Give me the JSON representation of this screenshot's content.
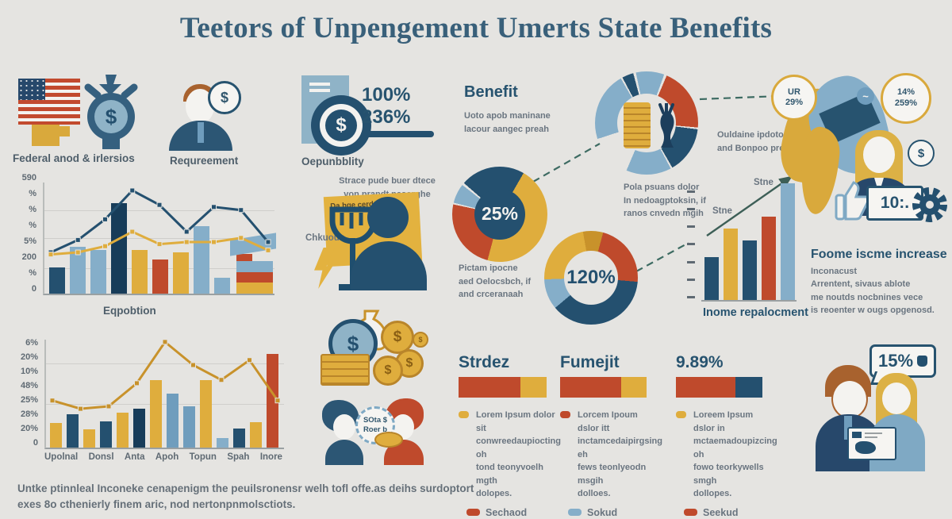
{
  "title": "Teetors of Unpengement Umerts State Benefits",
  "palette": {
    "navy": "#24506f",
    "dnavy": "#173c59",
    "lblue": "#85aec9",
    "mblue": "#6f9dbd",
    "red": "#bf4a2c",
    "gold": "#dfad3d",
    "dgold": "#c8922b",
    "bg": "#e5e4e1",
    "white": "#f6f5f2"
  },
  "top": {
    "federal_label": "Federal anod & irlersios",
    "requirement_label": "Requreement",
    "dependability_label": "Oepunbblity",
    "dependability_value1": "100%",
    "dependability_value2": "236%",
    "benefit_title": "Benefit",
    "benefit_subtitle": "Uoto apob maninane\nlacour aangec preah",
    "donut_note": "Ouldaine ipdotose\nand Bonpoo preah",
    "bubble_ur": "UR\n29%",
    "bubble_pct": "14%\n259%",
    "dollar_sign": "$",
    "calculator_display": "10:."
  },
  "middle": {
    "sticky_text": "Strace pude buer dtece\nvon prandt nasorghe",
    "sticky_note": "Da hge cerdones",
    "chkuoun_label": "Chkuoun",
    "pie_caption": "Pictam ipocne\naed Oelocsbch, if\nand crceranaah",
    "donut_caption": "Pola psuans dolor\nIn nedoagptoksin, if\nranos cnvedn mgih",
    "stne_label_1": "Stne",
    "stne_label_2": "Stne",
    "income_chart_label": "Inome repalocment",
    "income_title": "Foome iscme increase",
    "income_sub": "Inconacust",
    "income_body": "Arrentent, sivaus ablote\nme noutds nocbnines vece\nis reoenter w ougs opgenosd."
  },
  "bottom": {
    "talk_bubble": "SOta $\nRoer b",
    "family_bubble": "15%",
    "columns": [
      {
        "title": "Strdez",
        "bullet": "gold",
        "text": "Lorem Ipsum dolor sit\nconwreedaupiocting oh\ntond teonyvoelh mgth\ndolopes.",
        "pill": "red",
        "pill_label": "Sechaod",
        "bar": [
          [
            "red",
            78
          ],
          [
            "gold",
            33
          ]
        ]
      },
      {
        "title": "Fumejit",
        "bullet": "red",
        "text": "Lorcem Ipoum dslor itt\ninctamcedaipirgsing eh\nfews teonlyeodn msgih\ndolloes.",
        "pill": "lblue",
        "pill_label": "Sokud",
        "bar": [
          [
            "red",
            77
          ],
          [
            "gold",
            32
          ]
        ]
      },
      {
        "title": "9.89%",
        "bullet": "gold",
        "text": "Loreem Ipsum dslor in\nmctaemadoupizcing oh\nfowo teorkywells smgh\ndollopes.",
        "pill": "red",
        "pill_label": "Seekud",
        "bar": [
          [
            "red",
            75
          ],
          [
            "navy",
            34
          ]
        ]
      }
    ],
    "footer": "Untke ptinnleal Inconeke cenapenigm the peuilsronensr welh tofl offe.as deihs surdoptort\nexes 8o cthenierly finem aric, nod nertonpnmolsctiots."
  },
  "chart_data": [
    {
      "id": "chart1",
      "type": "bar+line",
      "title": "Eqpobtion",
      "y_ticks": [
        "590",
        "%",
        "%",
        "%",
        "5%",
        "200",
        "%",
        "0"
      ],
      "bars": {
        "values": [
          25,
          45,
          42,
          88,
          42,
          33,
          40,
          65,
          15
        ],
        "colors": [
          "navy",
          "lblue",
          "lblue",
          "dnavy",
          "gold",
          "red",
          "gold",
          "lblue",
          "lblue"
        ]
      },
      "stack": {
        "layers": [
          [
            "gold",
            14
          ],
          [
            "red",
            13
          ],
          [
            "lblue",
            14
          ]
        ],
        "cap": [
          "red",
          20,
          9
        ]
      },
      "series": [
        {
          "name": "blue-line",
          "color": "navy",
          "values": [
            40,
            52,
            72,
            100,
            86,
            60,
            84,
            81,
            50
          ]
        },
        {
          "name": "gold-line",
          "color": "gold",
          "values": [
            38,
            40,
            46,
            60,
            48,
            50,
            50,
            54,
            42
          ]
        }
      ],
      "ylim": [
        0,
        100
      ],
      "grid": true,
      "legend": "none"
    },
    {
      "id": "chart2",
      "type": "bar+line",
      "y_ticks": [
        "6%",
        "20%",
        "10%",
        "48%",
        "25%",
        "28%",
        "20%",
        "0"
      ],
      "x_labels": [
        "Upolnal",
        "Donsl",
        "Anta",
        "Apoh",
        "Topun",
        "Spah",
        "Inore"
      ],
      "bars": {
        "values": [
          30,
          40,
          22,
          32,
          42,
          47,
          82,
          65,
          50,
          82,
          12,
          23,
          31,
          113
        ],
        "colors": [
          "gold",
          "navy",
          "gold",
          "navy",
          "gold",
          "dnavy",
          "gold",
          "mblue",
          "mblue",
          "gold",
          "lblue",
          "navy",
          "gold",
          "red"
        ]
      },
      "series": [
        {
          "name": "gold-line",
          "color": "dgold",
          "values": [
            57,
            47,
            50,
            78,
            128,
            100,
            82,
            106,
            57
          ]
        }
      ],
      "ylim": [
        0,
        100
      ],
      "grid": true,
      "legend": "none"
    },
    {
      "id": "chart3",
      "type": "bar",
      "label": "Inome repalocment",
      "bars": {
        "values": [
          36,
          60,
          50,
          70,
          98
        ],
        "colors": [
          "navy",
          "gold",
          "navy",
          "red",
          "lblue"
        ]
      },
      "ylim": [
        0,
        100
      ],
      "annotation": "rising arrow"
    },
    {
      "id": "pie25",
      "type": "pie",
      "center_label": "25%",
      "slices": [
        {
          "color": "navy",
          "from": 0,
          "to": 30
        },
        {
          "color": "gold",
          "from": 30,
          "to": 195
        },
        {
          "color": "red",
          "from": 195,
          "to": 282
        },
        {
          "color": "lblue",
          "from": 284,
          "to": 308
        },
        {
          "color": "navy",
          "from": 311,
          "to": 360
        }
      ]
    },
    {
      "id": "donut120",
      "type": "donut",
      "center_label": "120%",
      "slices": [
        {
          "color": "dgold",
          "from": 0,
          "to": 15
        },
        {
          "color": "red",
          "from": 15,
          "to": 95
        },
        {
          "color": "navy",
          "from": 95,
          "to": 230
        },
        {
          "color": "lblue",
          "from": 230,
          "to": 268
        },
        {
          "color": "gold",
          "from": 268,
          "to": 350
        },
        {
          "color": "dgold",
          "from": 350,
          "to": 360
        }
      ]
    },
    {
      "id": "topdonut",
      "type": "donut",
      "center_label": "",
      "slices": [
        {
          "color": "lblue",
          "from": 0,
          "to": 20
        },
        {
          "color": "red",
          "from": 23,
          "to": 95
        },
        {
          "color": "navy",
          "from": 97,
          "to": 150
        },
        {
          "color": "lblue",
          "from": 152,
          "to": 203
        },
        {
          "color": "lblue",
          "from": 252,
          "to": 330
        },
        {
          "color": "navy",
          "from": 332,
          "to": 345
        },
        {
          "color": "lblue",
          "from": 348,
          "to": 360
        }
      ]
    }
  ]
}
